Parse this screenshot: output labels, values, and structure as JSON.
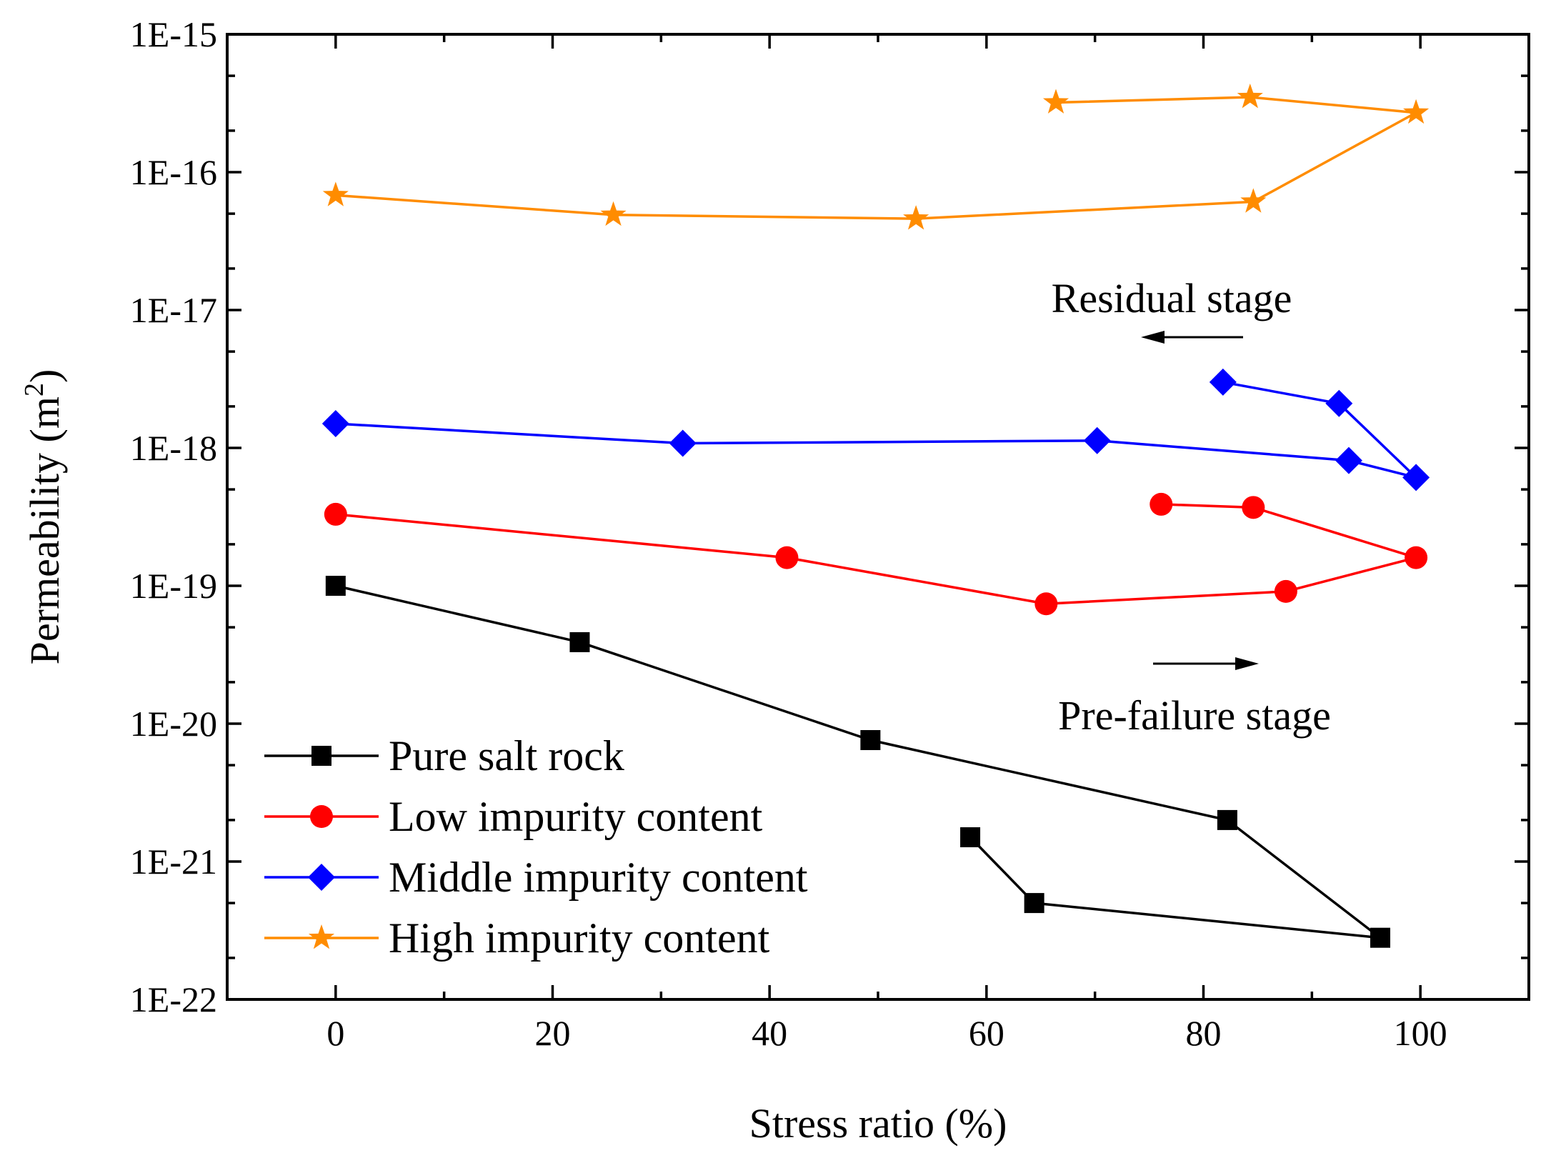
{
  "chart_data": {
    "type": "line",
    "title": "",
    "xlabel": "Stress ratio (%)",
    "ylabel_main": "Permeability (m",
    "ylabel_sup": "2",
    "ylabel_close": ")",
    "y_scale": "log",
    "xlim": [
      -10,
      110
    ],
    "ylim": [
      1e-22,
      1e-15
    ],
    "x_ticks": [
      0,
      20,
      40,
      60,
      80,
      100
    ],
    "x_tick_labels": [
      "0",
      "20",
      "40",
      "60",
      "80",
      "100"
    ],
    "y_ticks": [
      1e-22,
      1e-21,
      1e-20,
      1e-19,
      1e-18,
      1e-17,
      1e-16,
      1e-15
    ],
    "y_tick_labels": [
      "1E-22",
      "1E-21",
      "1E-20",
      "1E-19",
      "1E-18",
      "1E-17",
      "1E-16",
      "1E-15"
    ],
    "grid": false,
    "legend_position": "bottom-left",
    "annotations": {
      "residual": "Residual stage",
      "prefailure": "Pre-failure stage"
    },
    "series": [
      {
        "name": "Pure salt rock",
        "color": "#000000",
        "marker": "square",
        "x": [
          0,
          22.5,
          49.3,
          82.2,
          96.3,
          64.4,
          58.5
        ],
        "y": [
          1e-19,
          3.9e-20,
          7.6e-21,
          2e-21,
          2.8e-22,
          5e-22,
          1.5e-21
        ]
      },
      {
        "name": "Low impurity content",
        "color": "#ff0000",
        "marker": "circle",
        "x": [
          0,
          41.6,
          65.5,
          87.6,
          99.6,
          84.6,
          76.1
        ],
        "y": [
          3.3e-19,
          1.6e-19,
          7.4e-20,
          9.1e-20,
          1.6e-19,
          3.7e-19,
          3.9e-19
        ]
      },
      {
        "name": "Middle impurity content",
        "color": "#0000ff",
        "marker": "diamond",
        "x": [
          0,
          32,
          70.2,
          93.4,
          99.6,
          92.5,
          81.8
        ],
        "y": [
          1.5e-18,
          1.08e-18,
          1.13e-18,
          8.1e-19,
          6.1e-19,
          2.1e-18,
          3e-18
        ]
      },
      {
        "name": "High impurity content",
        "color": "#ff8c00",
        "marker": "star",
        "x": [
          0,
          25.6,
          53.5,
          84.6,
          99.6,
          84.3,
          66.4
        ],
        "y": [
          6.8e-17,
          4.9e-17,
          4.6e-17,
          6.1e-17,
          2.7e-16,
          3.5e-16,
          3.2e-16
        ]
      }
    ]
  }
}
